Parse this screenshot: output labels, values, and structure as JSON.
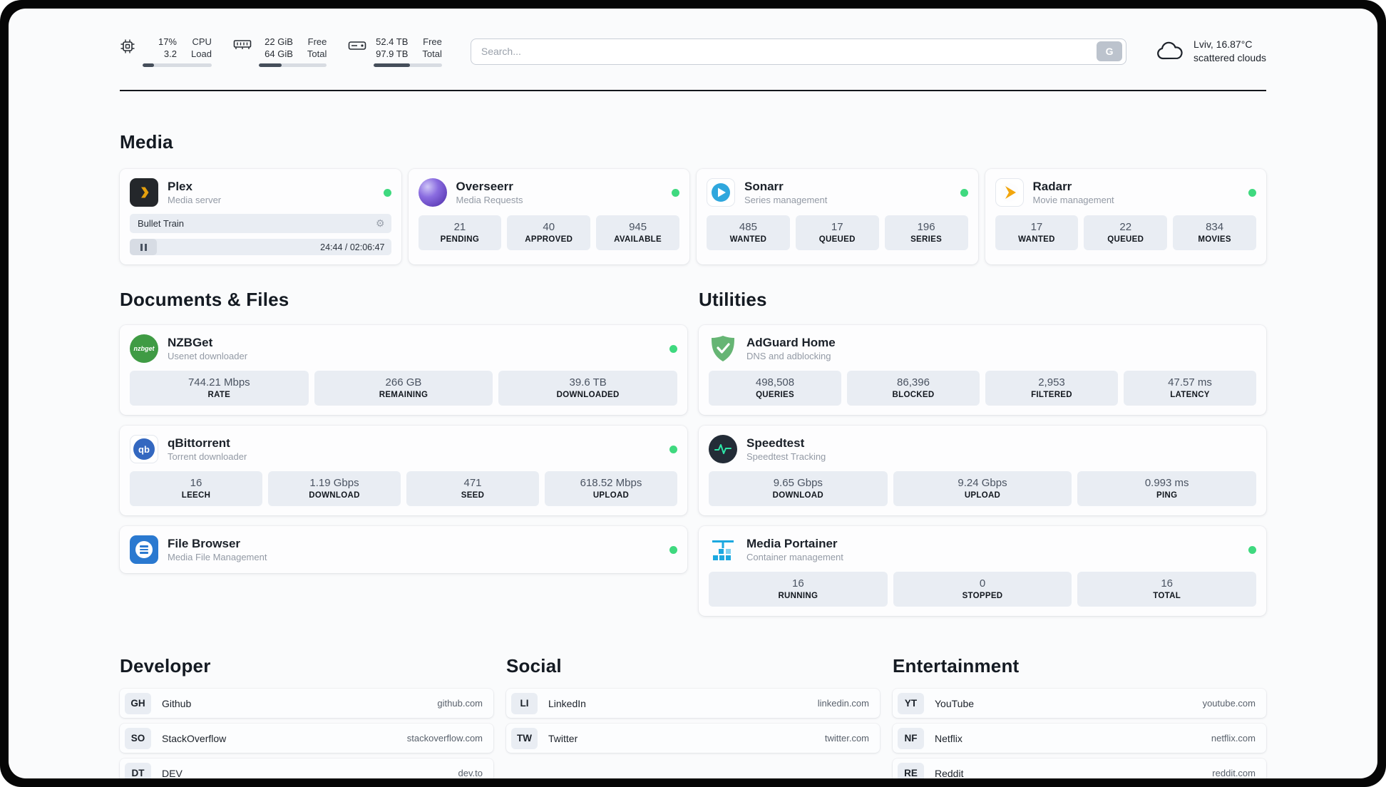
{
  "colors": {
    "status_green": "#3fd97f",
    "plex_yellow": "#e5a00d",
    "sonarr_blue": "#2fa7dd",
    "radarr_yellow": "#f2a60d",
    "adguard_green": "#66b574",
    "speedtest_pulse": "#2ee6a8",
    "portainer_blue": "#1ba8e0"
  },
  "topbar": {
    "cpu": {
      "line1": "17%",
      "line2": "3.2",
      "label1": "CPU",
      "label2": "Load",
      "progress_pct": 17
    },
    "memory": {
      "line1": "22 GiB",
      "line2": "64 GiB",
      "label1": "Free",
      "label2": "Total",
      "progress_pct": 34
    },
    "disk": {
      "line1": "52.4 TB",
      "line2": "97.9 TB",
      "label1": "Free",
      "label2": "Total",
      "progress_pct": 53
    },
    "search": {
      "placeholder": "Search...",
      "button_label": "G"
    },
    "weather": {
      "location": "Lviv, 16.87°C",
      "condition": "scattered clouds"
    }
  },
  "sections": {
    "media": {
      "title": "Media",
      "plex": {
        "name": "Plex",
        "subtitle": "Media server",
        "now_playing": "Bullet Train",
        "time": "24:44 / 02:06:47",
        "progress_pct": 20
      },
      "overseerr": {
        "name": "Overseerr",
        "subtitle": "Media Requests",
        "stats": [
          {
            "value": "21",
            "label": "PENDING"
          },
          {
            "value": "40",
            "label": "APPROVED"
          },
          {
            "value": "945",
            "label": "AVAILABLE"
          }
        ]
      },
      "sonarr": {
        "name": "Sonarr",
        "subtitle": "Series management",
        "stats": [
          {
            "value": "485",
            "label": "WANTED"
          },
          {
            "value": "17",
            "label": "QUEUED"
          },
          {
            "value": "196",
            "label": "SERIES"
          }
        ]
      },
      "radarr": {
        "name": "Radarr",
        "subtitle": "Movie management",
        "stats": [
          {
            "value": "17",
            "label": "WANTED"
          },
          {
            "value": "22",
            "label": "QUEUED"
          },
          {
            "value": "834",
            "label": "MOVIES"
          }
        ]
      }
    },
    "documents": {
      "title": "Documents & Files",
      "nzbget": {
        "name": "NZBGet",
        "subtitle": "Usenet downloader",
        "icon_text": "nzbget",
        "stats": [
          {
            "value": "744.21 Mbps",
            "label": "RATE"
          },
          {
            "value": "266 GB",
            "label": "REMAINING"
          },
          {
            "value": "39.6 TB",
            "label": "DOWNLOADED"
          }
        ]
      },
      "qbittorrent": {
        "name": "qBittorrent",
        "subtitle": "Torrent downloader",
        "icon_text": "qb",
        "stats": [
          {
            "value": "16",
            "label": "LEECH"
          },
          {
            "value": "1.19 Gbps",
            "label": "DOWNLOAD"
          },
          {
            "value": "471",
            "label": "SEED"
          },
          {
            "value": "618.52 Mbps",
            "label": "UPLOAD"
          }
        ]
      },
      "filebrowser": {
        "name": "File Browser",
        "subtitle": "Media File Management"
      }
    },
    "utilities": {
      "title": "Utilities",
      "adguard": {
        "name": "AdGuard Home",
        "subtitle": "DNS and adblocking",
        "stats": [
          {
            "value": "498,508",
            "label": "QUERIES"
          },
          {
            "value": "86,396",
            "label": "BLOCKED"
          },
          {
            "value": "2,953",
            "label": "FILTERED"
          },
          {
            "value": "47.57 ms",
            "label": "LATENCY"
          }
        ]
      },
      "speedtest": {
        "name": "Speedtest",
        "subtitle": "Speedtest Tracking",
        "stats": [
          {
            "value": "9.65 Gbps",
            "label": "DOWNLOAD"
          },
          {
            "value": "9.24 Gbps",
            "label": "UPLOAD"
          },
          {
            "value": "0.993 ms",
            "label": "PING"
          }
        ]
      },
      "portainer": {
        "name": "Media Portainer",
        "subtitle": "Container management",
        "stats": [
          {
            "value": "16",
            "label": "RUNNING"
          },
          {
            "value": "0",
            "label": "STOPPED"
          },
          {
            "value": "16",
            "label": "TOTAL"
          }
        ]
      }
    },
    "developer": {
      "title": "Developer",
      "links": [
        {
          "badge": "GH",
          "name": "Github",
          "url": "github.com"
        },
        {
          "badge": "SO",
          "name": "StackOverflow",
          "url": "stackoverflow.com"
        },
        {
          "badge": "DT",
          "name": "DEV",
          "url": "dev.to"
        }
      ]
    },
    "social": {
      "title": "Social",
      "links": [
        {
          "badge": "LI",
          "name": "LinkedIn",
          "url": "linkedin.com"
        },
        {
          "badge": "TW",
          "name": "Twitter",
          "url": "twitter.com"
        }
      ]
    },
    "entertainment": {
      "title": "Entertainment",
      "links": [
        {
          "badge": "YT",
          "name": "YouTube",
          "url": "youtube.com"
        },
        {
          "badge": "NF",
          "name": "Netflix",
          "url": "netflix.com"
        },
        {
          "badge": "RE",
          "name": "Reddit",
          "url": "reddit.com"
        }
      ]
    }
  }
}
